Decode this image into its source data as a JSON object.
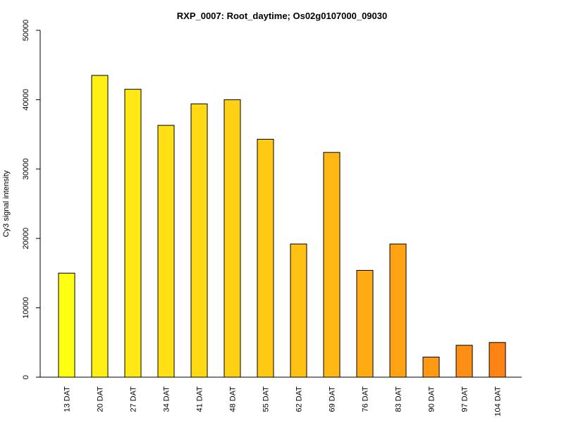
{
  "chart_data": {
    "type": "bar",
    "title": "RXP_0007: Root_daytime; Os02g0107000_09030",
    "xlabel": "",
    "ylabel": "Cy3 signal intensity",
    "ylim": [
      0,
      50000
    ],
    "yticks": [
      0,
      10000,
      20000,
      30000,
      40000,
      50000
    ],
    "categories": [
      "13 DAT",
      "20 DAT",
      "27 DAT",
      "34 DAT",
      "41 DAT",
      "48 DAT",
      "55 DAT",
      "62 DAT",
      "69 DAT",
      "76 DAT",
      "83 DAT",
      "90 DAT",
      "97 DAT",
      "104 DAT"
    ],
    "values": [
      15000,
      43500,
      41500,
      36300,
      39400,
      40000,
      34300,
      19200,
      32400,
      15400,
      19200,
      2900,
      4600,
      5000
    ],
    "colors": [
      "#FFFF14",
      "#FFF014",
      "#FFE814",
      "#FFE014",
      "#FFD914",
      "#FFD114",
      "#FFC914",
      "#FFC114",
      "#FFB714",
      "#FFAC14",
      "#FFA314",
      "#FF9914",
      "#FF8F14",
      "#FF8414"
    ],
    "grid": false,
    "legend": "none"
  }
}
